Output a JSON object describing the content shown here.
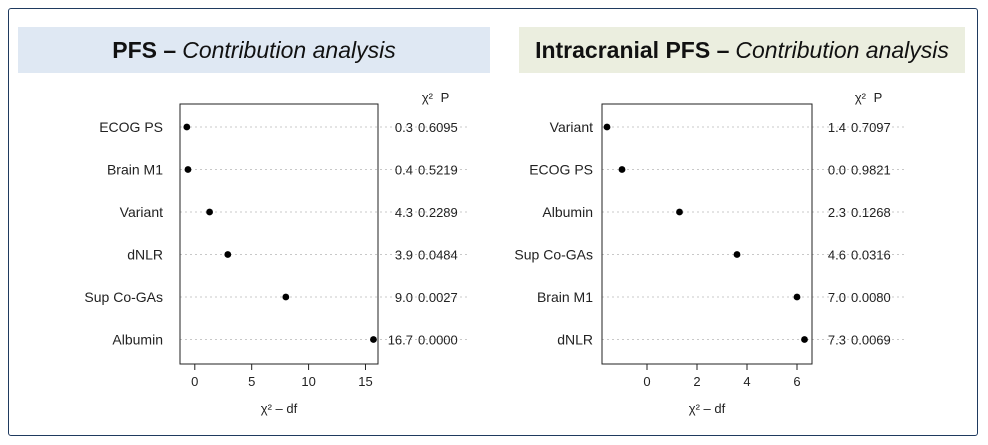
{
  "chart_data": [
    {
      "type": "scatter",
      "title": {
        "bold": "PFS –",
        "italic": "Contribution analysis"
      },
      "xlabel": "χ² – df",
      "stat_headers": [
        "χ²",
        "P"
      ],
      "xlim": [
        -1.3,
        16.1
      ],
      "xticks": [
        0,
        5,
        10,
        15
      ],
      "grid": true,
      "categories": [
        "ECOG PS",
        "Brain M1",
        "Variant",
        "dNLR",
        "Sup Co-GAs",
        "Albumin"
      ],
      "values": [
        -0.7,
        -0.6,
        1.3,
        2.9,
        8.0,
        15.7
      ],
      "chi2": [
        "0.3",
        "0.4",
        "4.3",
        "3.9",
        "9.0",
        "16.7"
      ],
      "p": [
        "0.6095",
        "0.5219",
        "0.2289",
        "0.0484",
        "0.0027",
        "0.0000"
      ]
    },
    {
      "type": "scatter",
      "title": {
        "bold": "Intracranial PFS –",
        "italic": "Contribution analysis"
      },
      "xlabel": "χ² – df",
      "stat_headers": [
        "χ²",
        "P"
      ],
      "xlim": [
        -1.8,
        6.6
      ],
      "xticks": [
        0,
        2,
        4,
        6
      ],
      "grid": true,
      "categories": [
        "Variant",
        "ECOG PS",
        "Albumin",
        "Sup Co-GAs",
        "Brain M1",
        "dNLR"
      ],
      "values": [
        -1.6,
        -1.0,
        1.3,
        3.6,
        6.0,
        6.3
      ],
      "chi2": [
        "1.4",
        "0.0",
        "2.3",
        "4.6",
        "7.0",
        "7.3"
      ],
      "p": [
        "0.7097",
        "0.9821",
        "0.1268",
        "0.0316",
        "0.0080",
        "0.0069"
      ]
    }
  ]
}
